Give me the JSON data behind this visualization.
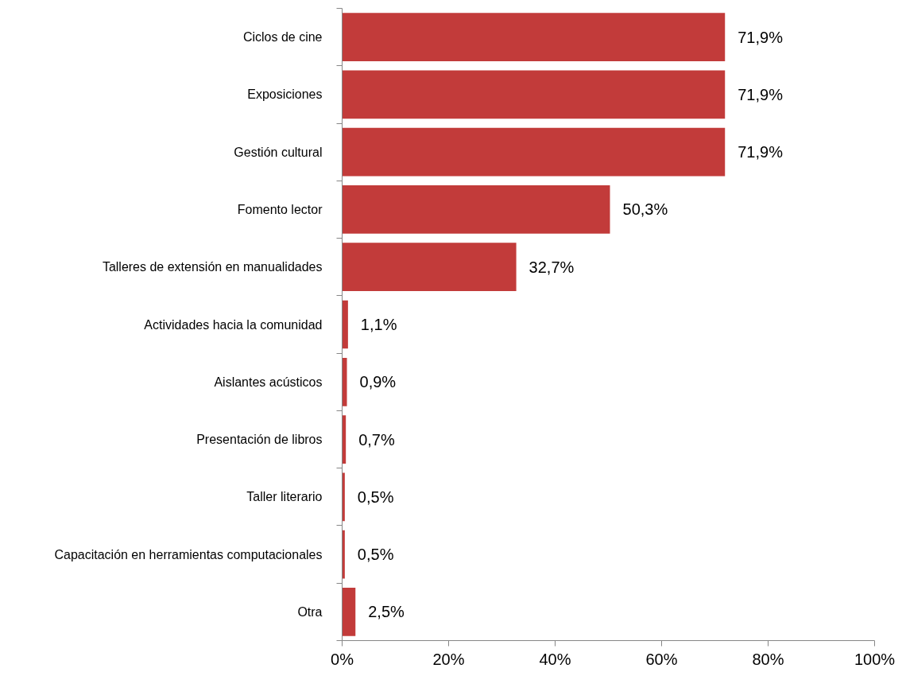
{
  "chart_data": {
    "type": "bar",
    "orientation": "horizontal",
    "categories": [
      "Ciclos de cine",
      "Exposiciones",
      "Gestión cultural",
      "Fomento lector",
      "Talleres de extensión en manualidades",
      "Actividades hacia la comunidad",
      "Aislantes acústicos",
      "Presentación de libros",
      "Taller literario",
      "Capacitación en herramientas computacionales",
      "Otra"
    ],
    "values": [
      71.9,
      71.9,
      71.9,
      50.3,
      32.7,
      1.1,
      0.9,
      0.7,
      0.5,
      0.5,
      2.5
    ],
    "value_labels": [
      "71,9%",
      "71,9%",
      "71,9%",
      "50,3%",
      "32,7%",
      "1,1%",
      "0,9%",
      "0,7%",
      "0,5%",
      "0,5%",
      "2,5%"
    ],
    "color": "#c23b3a",
    "xlim": [
      0,
      100
    ],
    "xticks": [
      {
        "value": 0,
        "label": "0%"
      },
      {
        "value": 20,
        "label": "20%"
      },
      {
        "value": 40,
        "label": "40%"
      },
      {
        "value": 60,
        "label": "60%"
      },
      {
        "value": 80,
        "label": "80%"
      },
      {
        "value": 100,
        "label": "100%"
      }
    ],
    "grid": false
  }
}
